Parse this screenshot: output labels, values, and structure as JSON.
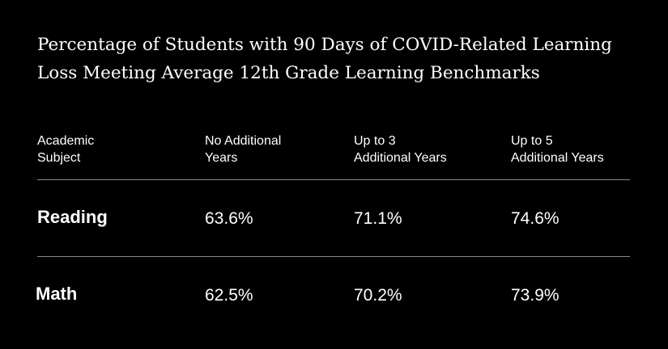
{
  "title": {
    "line1": "Percentage of Students with 90 Days of COVID-Related Learning",
    "line2": "Loss Meeting Average 12th Grade Learning Benchmarks"
  },
  "header": {
    "subject": {
      "line1": "Academic",
      "line2": "Subject"
    },
    "col1": {
      "line1": "No Additional",
      "line2": "Years"
    },
    "col2": {
      "line1": "Up to 3",
      "line2": "Additional Years"
    },
    "col3": {
      "line1": "Up to 5",
      "line2": "Additional Years"
    }
  },
  "colors": {
    "background": "#000000",
    "text": "#ffffff",
    "rule": "#8a8a8a"
  },
  "chart_data": {
    "type": "table",
    "title": "Percentage of Students with 90 Days of COVID-Related Learning Loss Meeting Average 12th Grade Learning Benchmarks",
    "columns": [
      "Academic Subject",
      "No Additional Years",
      "Up to 3 Additional Years",
      "Up to 5 Additional Years"
    ],
    "rows": [
      {
        "subject": "Reading",
        "values": [
          "63.6%",
          "71.1%",
          "74.6%"
        ]
      },
      {
        "subject": "Math",
        "values": [
          "62.5%",
          "70.2%",
          "73.9%"
        ]
      }
    ]
  }
}
